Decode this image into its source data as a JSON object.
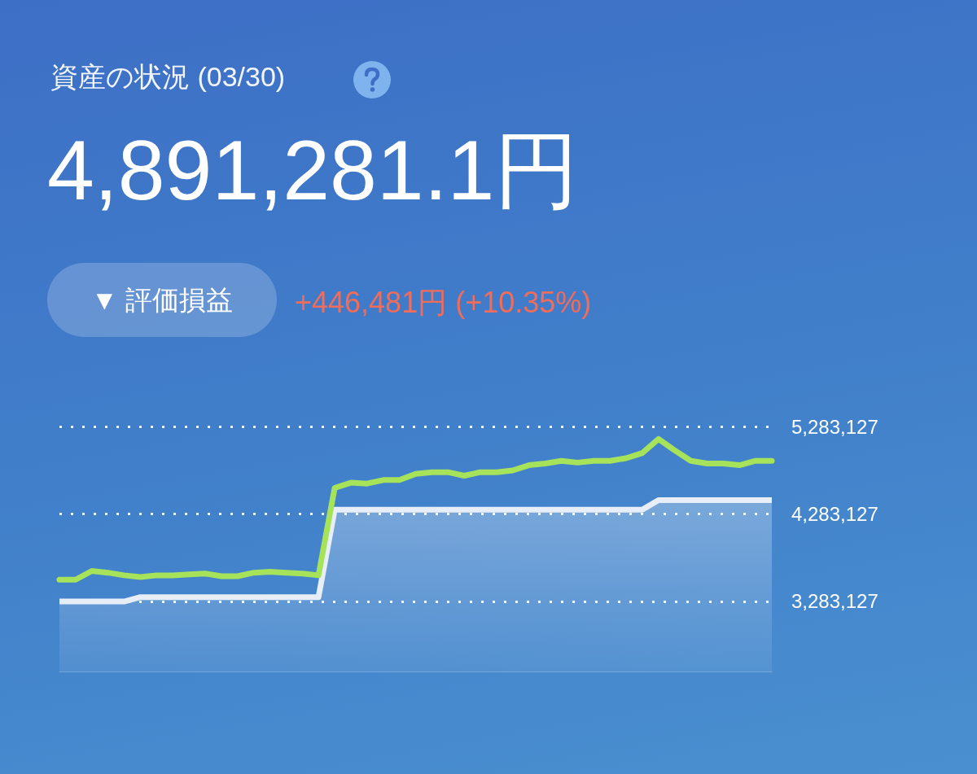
{
  "chart_data": {
    "type": "line",
    "title": "資産の状況 (03/30)",
    "subtitle": "4,891,281.1円",
    "annotations": [
      "▼ 評価損益",
      "+446,481円 (+10.35%)"
    ],
    "categories": [
      null,
      null,
      null,
      null,
      null,
      null,
      null,
      null,
      null,
      null,
      null,
      null,
      null,
      null,
      null,
      null,
      null,
      null,
      null,
      null,
      null,
      null,
      null,
      null,
      null,
      null,
      null,
      null,
      null,
      null,
      null,
      null,
      null,
      null,
      null,
      null,
      null,
      null,
      null,
      null,
      null,
      null,
      null,
      null,
      null
    ],
    "series": [
      {
        "type": "area",
        "color": "#e8eef8",
        "values": [
          3280000,
          3280000,
          3280000,
          3280000,
          3280000,
          3330000,
          3330000,
          3330000,
          3330000,
          3330000,
          3330000,
          3330000,
          3330000,
          3330000,
          3330000,
          3330000,
          3330000,
          4330000,
          4330000,
          4330000,
          4330000,
          4330000,
          4330000,
          4330000,
          4330000,
          4330000,
          4330000,
          4330000,
          4330000,
          4330000,
          4330000,
          4330000,
          4330000,
          4330000,
          4330000,
          4330000,
          4330000,
          4440000,
          4440000,
          4440000,
          4440000,
          4440000,
          4440000,
          4440000,
          4440000
        ]
      },
      {
        "type": "line",
        "color": "#a6e25a",
        "values": [
          3530000,
          3530000,
          3630000,
          3610000,
          3580000,
          3560000,
          3580000,
          3580000,
          3590000,
          3600000,
          3570000,
          3570000,
          3610000,
          3620000,
          3610000,
          3600000,
          3580000,
          4580000,
          4640000,
          4630000,
          4670000,
          4670000,
          4740000,
          4760000,
          4760000,
          4720000,
          4760000,
          4760000,
          4780000,
          4840000,
          4860000,
          4890000,
          4870000,
          4890000,
          4890000,
          4920000,
          4980000,
          5140000,
          5010000,
          4890000,
          4860000,
          4860000,
          4840000,
          4890000,
          4890000
        ]
      }
    ],
    "ylim": [
      2480000,
      5283127
    ],
    "yticks": [
      {
        "value": 3283127,
        "label": "3,283,127"
      },
      {
        "value": 4283127,
        "label": "4,283,127"
      },
      {
        "value": 5283127,
        "label": "5,283,127"
      }
    ],
    "grid": "y",
    "marker": "none",
    "tick_labels": "y"
  }
}
